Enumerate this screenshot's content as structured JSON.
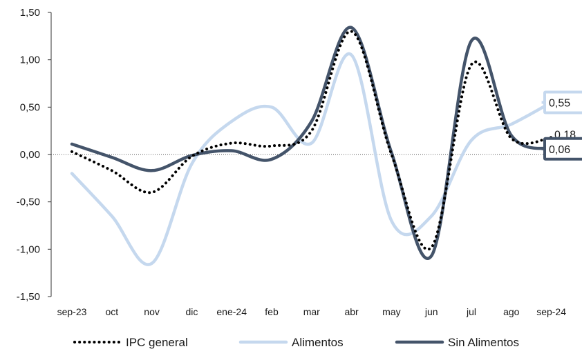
{
  "chart_data": {
    "type": "line",
    "categories": [
      "sep-23",
      "oct",
      "nov",
      "dic",
      "ene-24",
      "feb",
      "mar",
      "abr",
      "may",
      "jun",
      "jul",
      "ago",
      "sep-24"
    ],
    "ylim": [
      -1.5,
      1.5
    ],
    "yticks": [
      "1,50",
      "1,00",
      "0,50",
      "0,00",
      "-0,50",
      "-1,00",
      "-1,50"
    ],
    "ytick_values": [
      1.5,
      1.0,
      0.5,
      0.0,
      -0.5,
      -1.0,
      -1.5
    ],
    "grid": false,
    "legend_position": "bottom",
    "series": [
      {
        "name": "IPC general",
        "style": "dotted",
        "color": "#000000",
        "values": [
          0.03,
          -0.17,
          -0.4,
          -0.02,
          0.12,
          0.09,
          0.25,
          1.3,
          0.0,
          -0.98,
          0.95,
          0.17,
          0.18
        ],
        "end_label": "0,18",
        "end_label_boxed": false
      },
      {
        "name": "Alimentos",
        "style": "solid",
        "color": "#c5d8ee",
        "values": [
          -0.2,
          -0.65,
          -1.15,
          -0.1,
          0.35,
          0.5,
          0.12,
          1.05,
          -0.7,
          -0.65,
          0.15,
          0.32,
          0.55
        ],
        "end_label": "0,55",
        "end_label_boxed": true
      },
      {
        "name": "Sin Alimentos",
        "style": "solid",
        "color": "#44546a",
        "values": [
          0.11,
          -0.03,
          -0.17,
          -0.01,
          0.04,
          -0.05,
          0.35,
          1.34,
          0.02,
          -1.07,
          1.2,
          0.2,
          0.06
        ],
        "end_label": "0,06",
        "end_label_boxed": true
      }
    ]
  }
}
